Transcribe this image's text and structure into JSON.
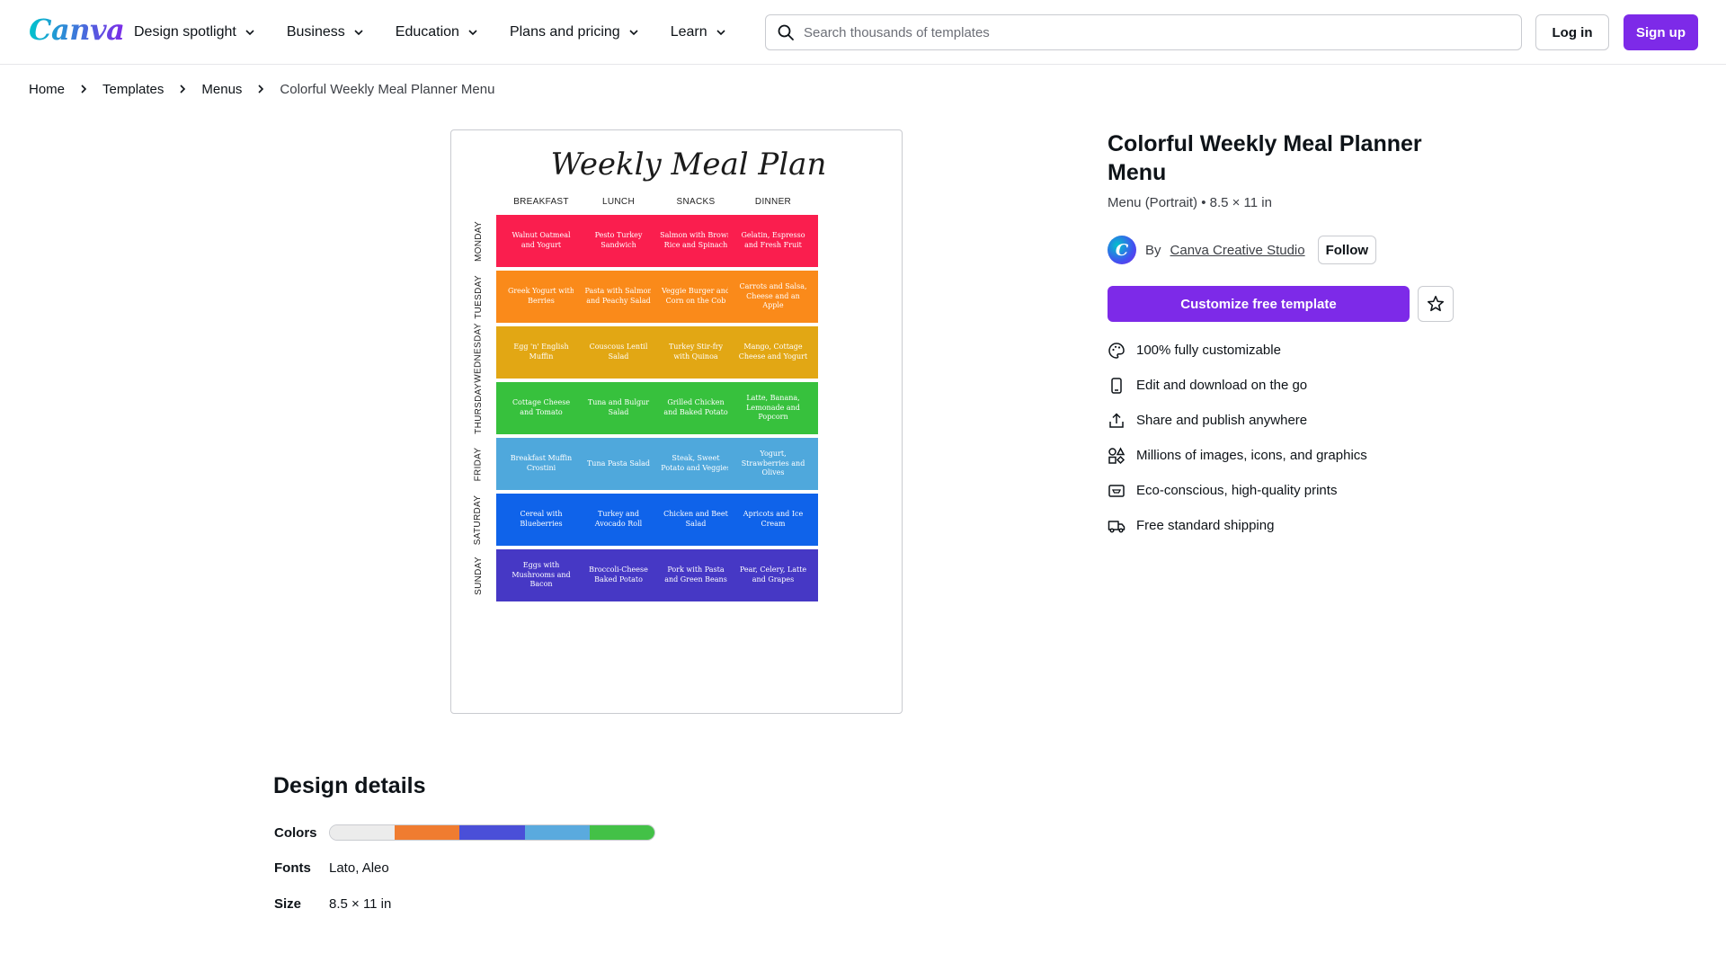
{
  "header": {
    "logo": "Canva",
    "nav": [
      {
        "label": "Design spotlight"
      },
      {
        "label": "Business"
      },
      {
        "label": "Education"
      },
      {
        "label": "Plans and pricing"
      },
      {
        "label": "Learn"
      }
    ],
    "search_placeholder": "Search thousands of templates",
    "login_label": "Log in",
    "signup_label": "Sign up"
  },
  "breadcrumb": {
    "items": [
      "Home",
      "Templates",
      "Menus"
    ],
    "current": "Colorful Weekly Meal Planner Menu"
  },
  "preview": {
    "title": "Weekly Meal Plan",
    "columns": [
      "BREAKFAST",
      "LUNCH",
      "SNACKS",
      "DINNER"
    ],
    "rows": [
      {
        "day": "MONDAY",
        "color": "#fa1e4e",
        "cells": [
          "Walnut Oatmeal and Yogurt",
          "Pesto Turkey Sandwich",
          "Salmon with Brown Rice and Spinach",
          "Gelatin, Espresso and Fresh Fruit"
        ]
      },
      {
        "day": "TUESDAY",
        "color": "#fa8a1a",
        "cells": [
          "Greek Yogurt with Berries",
          "Pasta with Salmon and Peachy Salad",
          "Veggie Burger and Corn on the Cob",
          "Carrots and Salsa, Cheese and an Apple"
        ]
      },
      {
        "day": "WEDNESDAY",
        "color": "#e2a714",
        "cells": [
          "Egg 'n' English Muffin",
          "Couscous Lentil Salad",
          "Turkey Stir-fry with Quinoa",
          "Mango, Cottage Cheese and Yogurt"
        ]
      },
      {
        "day": "THURSDAY",
        "color": "#37c13d",
        "cells": [
          "Cottage Cheese and Tomato",
          "Tuna and Bulgur Salad",
          "Grilled Chicken and Baked Potato",
          "Latte, Banana, Lemonade and Popcorn"
        ]
      },
      {
        "day": "FRIDAY",
        "color": "#4fa8dc",
        "cells": [
          "Breakfast Muffin Crostini",
          "Tuna Pasta Salad",
          "Steak, Sweet Potato and Veggies",
          "Yogurt, Strawberries and Olives"
        ]
      },
      {
        "day": "SATURDAY",
        "color": "#0f63ea",
        "cells": [
          "Cereal with Blueberries",
          "Turkey and Avocado Roll",
          "Chicken and Beet Salad",
          "Apricots and Ice Cream"
        ]
      },
      {
        "day": "SUNDAY",
        "color": "#4638c5",
        "cells": [
          "Eggs with Mushrooms and Bacon",
          "Broccoli-Cheese Baked Potato",
          "Pork with Pasta and Green Beans",
          "Pear, Celery, Latte and Grapes"
        ]
      }
    ]
  },
  "info": {
    "title": "Colorful Weekly Meal Planner Menu",
    "meta": "Menu (Portrait) • 8.5 × 11 in",
    "author_prefix": "By",
    "author_name": "Canva Creative Studio",
    "follow_label": "Follow",
    "customize_label": "Customize free template",
    "features": [
      {
        "icon": "palette-icon",
        "label": "100% fully customizable"
      },
      {
        "icon": "mobile-icon",
        "label": "Edit and download on the go"
      },
      {
        "icon": "share-icon",
        "label": "Share and publish anywhere"
      },
      {
        "icon": "shapes-icon",
        "label": "Millions of images, icons, and graphics"
      },
      {
        "icon": "print-icon",
        "label": "Eco-conscious, high-quality prints"
      },
      {
        "icon": "truck-icon",
        "label": "Free standard shipping"
      }
    ]
  },
  "design_details": {
    "title": "Design details",
    "colors_label": "Colors",
    "colors": [
      "#ececec",
      "#f07c30",
      "#4a4fd8",
      "#5aaade",
      "#43c147"
    ],
    "fonts_label": "Fonts",
    "fonts_value": "Lato, Aleo",
    "size_label": "Size",
    "size_value": "8.5 × 11 in"
  }
}
